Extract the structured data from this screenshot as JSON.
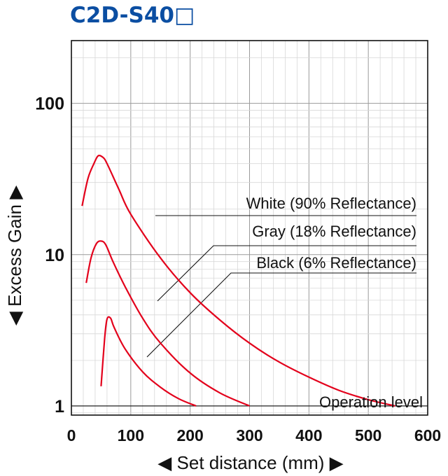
{
  "chart_data": {
    "type": "line",
    "title": "C2D-S40□",
    "xlabel": "◀ Set distance (mm) ▶",
    "ylabel": "◀ Excess Gain ▶",
    "xlim": [
      0,
      600
    ],
    "ylim": [
      0.87,
      260
    ],
    "yscale": "log",
    "grid": true,
    "x_ticks": [
      "0",
      "100",
      "200",
      "300",
      "400",
      "500",
      "600"
    ],
    "y_ticks": [
      "1",
      "10",
      "100"
    ],
    "series": [
      {
        "name": "White (90% Reflectance)",
        "color": "#e3001b",
        "points": [
          [
            18,
            21
          ],
          [
            28,
            32
          ],
          [
            38,
            40
          ],
          [
            45,
            45
          ],
          [
            53,
            44
          ],
          [
            60,
            40
          ],
          [
            80,
            27
          ],
          [
            100,
            18.5
          ],
          [
            150,
            9.5
          ],
          [
            200,
            5.6
          ],
          [
            250,
            3.7
          ],
          [
            300,
            2.6
          ],
          [
            350,
            1.95
          ],
          [
            400,
            1.55
          ],
          [
            450,
            1.27
          ],
          [
            500,
            1.1
          ],
          [
            545,
            1.0
          ]
        ]
      },
      {
        "name": "Gray (18% Reflectance)",
        "color": "#e3001b",
        "points": [
          [
            25,
            6.5
          ],
          [
            33,
            9.5
          ],
          [
            42,
            11.8
          ],
          [
            50,
            12.3
          ],
          [
            58,
            11.6
          ],
          [
            70,
            9.0
          ],
          [
            90,
            6.2
          ],
          [
            120,
            3.8
          ],
          [
            150,
            2.6
          ],
          [
            200,
            1.65
          ],
          [
            250,
            1.22
          ],
          [
            300,
            1.0
          ]
        ]
      },
      {
        "name": "Black (6% Reflectance)",
        "color": "#e3001b",
        "points": [
          [
            50,
            1.35
          ],
          [
            56,
            2.8
          ],
          [
            60,
            3.75
          ],
          [
            66,
            3.8
          ],
          [
            72,
            3.3
          ],
          [
            90,
            2.4
          ],
          [
            120,
            1.68
          ],
          [
            150,
            1.33
          ],
          [
            180,
            1.12
          ],
          [
            210,
            1.0
          ]
        ]
      }
    ],
    "annotations": {
      "white": "White (90% Reflectance)",
      "gray": "Gray (18% Reflectance)",
      "black": "Black (6% Reflectance)",
      "operation": "Operation level"
    }
  }
}
